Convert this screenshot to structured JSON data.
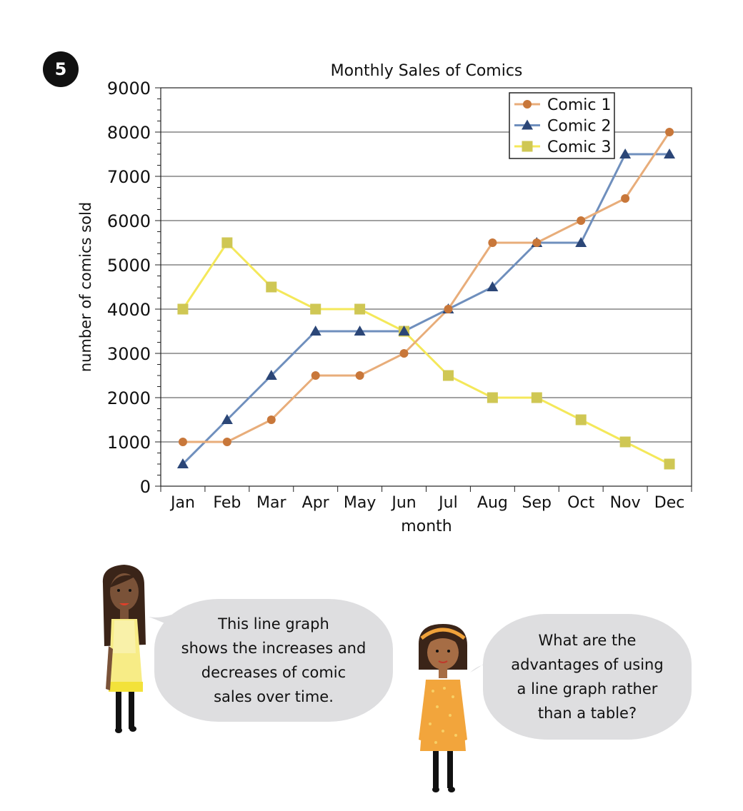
{
  "question_number": "5",
  "chart_data": {
    "type": "line",
    "title": "Monthly Sales of Comics",
    "xlabel": "month",
    "ylabel": "number of comics sold",
    "categories": [
      "Jan",
      "Feb",
      "Mar",
      "Apr",
      "May",
      "Jun",
      "Jul",
      "Aug",
      "Sep",
      "Oct",
      "Nov",
      "Dec"
    ],
    "ylim": [
      0,
      9000
    ],
    "yticks": [
      "0",
      "1000",
      "2000",
      "3000",
      "4000",
      "5000",
      "6000",
      "7000",
      "8000",
      "9000"
    ],
    "grid": "horizontal",
    "legend_position": "top-right",
    "series": [
      {
        "name": "Comic 1",
        "marker": "circle",
        "line_color": "#e8ad7a",
        "marker_color": "#c8773a",
        "values": [
          1000,
          1000,
          1500,
          2500,
          2500,
          3000,
          4000,
          5500,
          5500,
          6000,
          6500,
          8000
        ]
      },
      {
        "name": "Comic 2",
        "marker": "triangle",
        "line_color": "#6f8fbd",
        "marker_color": "#2b4677",
        "values": [
          500,
          1500,
          2500,
          3500,
          3500,
          3500,
          4000,
          4500,
          5500,
          5500,
          7500,
          7500
        ]
      },
      {
        "name": "Comic 3",
        "marker": "square",
        "line_color": "#f4e85a",
        "marker_color": "#cfc754",
        "values": [
          4000,
          5500,
          4500,
          4000,
          4000,
          3500,
          2500,
          2000,
          2000,
          1500,
          1000,
          500
        ]
      }
    ]
  },
  "speech": {
    "left": "This line graph\nshows the increases and\ndecreases of comic\nsales over time.",
    "right": "What are the\nadvantages of using\na line graph rather\nthan a table?"
  }
}
